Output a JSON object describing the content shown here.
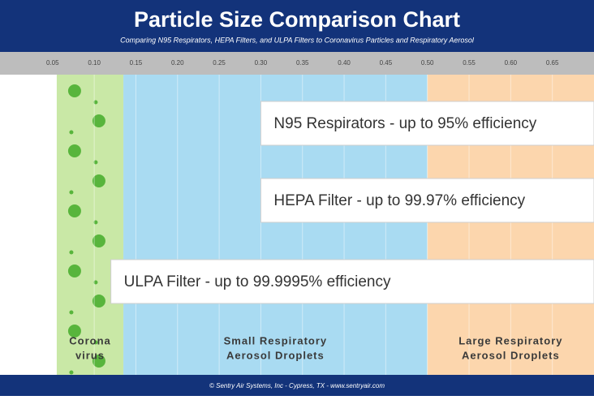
{
  "chart_data": {
    "type": "range",
    "title": "Particle Size Comparison Chart",
    "subtitle": "Comparing N95 Respirators, HEPA Filters, and ULPA Filters to Coronavirus Particles and Respiratory Aerosol",
    "xlim": [
      0.02,
      0.7
    ],
    "xticks": [
      0.05,
      {
        "value": 0.1,
        "label": "0.10"
      },
      0.15,
      {
        "value": 0.2,
        "label": "0.20"
      },
      0.25,
      {
        "value": 0.3,
        "label": "0.30"
      },
      0.35,
      {
        "value": 0.4,
        "label": "0.40"
      },
      0.45,
      {
        "value": 0.5,
        "label": "0.50"
      },
      0.55,
      {
        "value": 0.6,
        "label": "0.60"
      },
      0.65
    ],
    "bands": [
      {
        "label": [
          "Corona",
          "virus"
        ],
        "range": [
          0.055,
          0.135
        ],
        "color": "#c9e8a6"
      },
      {
        "label": [
          "Small Respiratory",
          "Aerosol Droplets"
        ],
        "range": [
          0.135,
          0.5
        ],
        "color": "#a9dbf2"
      },
      {
        "label": [
          "Large Respiratory",
          "Aerosol Droplets"
        ],
        "range": [
          0.5,
          0.7
        ],
        "color": "#fcd6ad"
      }
    ],
    "bars": [
      {
        "label": "N95 Respirators - up to 95% efficiency",
        "start": 0.3
      },
      {
        "label": "HEPA Filter - up to 99.97% efficiency",
        "start": 0.3
      },
      {
        "label": "ULPA Filter - up to 99.9995% efficiency",
        "start": 0.12
      }
    ],
    "footer": "© Sentry Air Systems, Inc - Cypress, TX - www.sentryair.com"
  }
}
